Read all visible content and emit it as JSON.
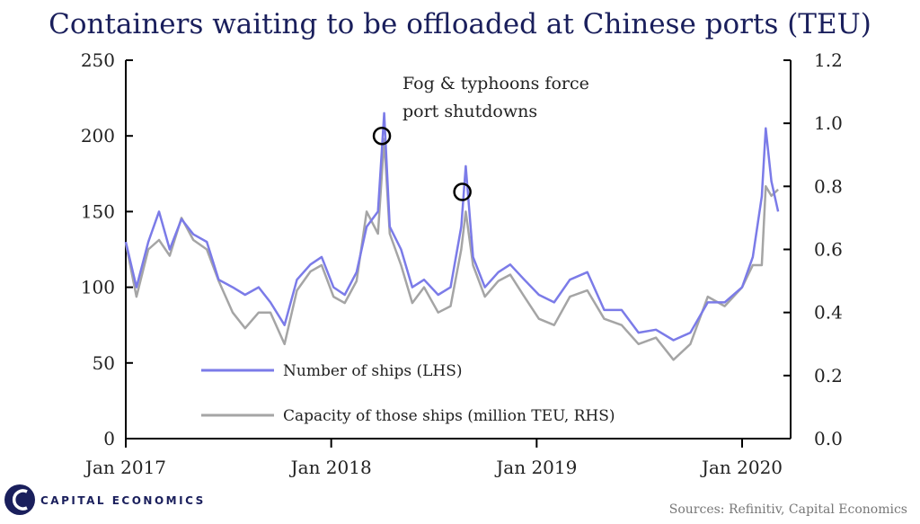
{
  "chart_data": {
    "type": "line",
    "title": "Containers waiting to be offloaded at Chinese ports (TEU)",
    "x_ticks": [
      "Jan 2017",
      "Jan 2018",
      "Jan 2019",
      "Jan 2020"
    ],
    "y_left": {
      "ticks": [
        "0",
        "50",
        "100",
        "150",
        "200",
        "250"
      ],
      "ylim": [
        0,
        250
      ]
    },
    "y_right": {
      "ticks": [
        "0.0",
        "0.2",
        "0.4",
        "0.6",
        "0.8",
        "1.0",
        "1.2"
      ],
      "ylim": [
        0,
        1.2
      ]
    },
    "grid": false,
    "legend_placement": "bottom-left",
    "series": [
      {
        "name": "Number of ships (LHS)",
        "axis": "left",
        "color": "#7b7be8",
        "points": [
          [
            "2017-01-01",
            130
          ],
          [
            "2017-01-20",
            100
          ],
          [
            "2017-02-10",
            130
          ],
          [
            "2017-03-01",
            150
          ],
          [
            "2017-03-20",
            125
          ],
          [
            "2017-04-10",
            145
          ],
          [
            "2017-05-01",
            135
          ],
          [
            "2017-05-25",
            130
          ],
          [
            "2017-06-15",
            105
          ],
          [
            "2017-07-10",
            100
          ],
          [
            "2017-08-01",
            95
          ],
          [
            "2017-08-25",
            100
          ],
          [
            "2017-09-15",
            90
          ],
          [
            "2017-10-10",
            75
          ],
          [
            "2017-11-01",
            105
          ],
          [
            "2017-11-25",
            115
          ],
          [
            "2017-12-15",
            120
          ],
          [
            "2018-01-05",
            100
          ],
          [
            "2018-01-25",
            95
          ],
          [
            "2018-02-15",
            110
          ],
          [
            "2018-03-05",
            140
          ],
          [
            "2018-03-25",
            150
          ],
          [
            "2018-04-05",
            215
          ],
          [
            "2018-04-15",
            140
          ],
          [
            "2018-05-05",
            125
          ],
          [
            "2018-05-25",
            100
          ],
          [
            "2018-06-15",
            105
          ],
          [
            "2018-07-10",
            95
          ],
          [
            "2018-08-01",
            100
          ],
          [
            "2018-08-20",
            140
          ],
          [
            "2018-08-28",
            180
          ],
          [
            "2018-09-10",
            120
          ],
          [
            "2018-10-01",
            100
          ],
          [
            "2018-10-25",
            110
          ],
          [
            "2018-11-15",
            115
          ],
          [
            "2018-12-10",
            105
          ],
          [
            "2019-01-05",
            95
          ],
          [
            "2019-02-01",
            90
          ],
          [
            "2019-03-01",
            105
          ],
          [
            "2019-04-01",
            110
          ],
          [
            "2019-05-01",
            85
          ],
          [
            "2019-06-01",
            85
          ],
          [
            "2019-07-01",
            70
          ],
          [
            "2019-08-01",
            72
          ],
          [
            "2019-09-01",
            65
          ],
          [
            "2019-10-01",
            70
          ],
          [
            "2019-11-01",
            90
          ],
          [
            "2019-12-01",
            90
          ],
          [
            "2020-01-01",
            100
          ],
          [
            "2020-01-20",
            120
          ],
          [
            "2020-02-05",
            160
          ],
          [
            "2020-02-12",
            205
          ],
          [
            "2020-02-22",
            170
          ],
          [
            "2020-03-05",
            150
          ]
        ]
      },
      {
        "name": "Capacity of those ships (million TEU, RHS)",
        "axis": "right",
        "color": "#a5a5a5",
        "points": [
          [
            "2017-01-01",
            0.62
          ],
          [
            "2017-01-20",
            0.45
          ],
          [
            "2017-02-10",
            0.6
          ],
          [
            "2017-03-01",
            0.63
          ],
          [
            "2017-03-20",
            0.58
          ],
          [
            "2017-04-10",
            0.7
          ],
          [
            "2017-05-01",
            0.63
          ],
          [
            "2017-05-25",
            0.6
          ],
          [
            "2017-06-15",
            0.5
          ],
          [
            "2017-07-10",
            0.4
          ],
          [
            "2017-08-01",
            0.35
          ],
          [
            "2017-08-25",
            0.4
          ],
          [
            "2017-09-15",
            0.4
          ],
          [
            "2017-10-10",
            0.3
          ],
          [
            "2017-11-01",
            0.47
          ],
          [
            "2017-11-25",
            0.53
          ],
          [
            "2017-12-15",
            0.55
          ],
          [
            "2018-01-05",
            0.45
          ],
          [
            "2018-01-25",
            0.43
          ],
          [
            "2018-02-15",
            0.5
          ],
          [
            "2018-03-05",
            0.72
          ],
          [
            "2018-03-25",
            0.65
          ],
          [
            "2018-04-05",
            0.95
          ],
          [
            "2018-04-15",
            0.65
          ],
          [
            "2018-05-05",
            0.55
          ],
          [
            "2018-05-25",
            0.43
          ],
          [
            "2018-06-15",
            0.48
          ],
          [
            "2018-07-10",
            0.4
          ],
          [
            "2018-08-01",
            0.42
          ],
          [
            "2018-08-20",
            0.6
          ],
          [
            "2018-08-28",
            0.72
          ],
          [
            "2018-09-10",
            0.55
          ],
          [
            "2018-10-01",
            0.45
          ],
          [
            "2018-10-25",
            0.5
          ],
          [
            "2018-11-15",
            0.52
          ],
          [
            "2018-12-10",
            0.45
          ],
          [
            "2019-01-05",
            0.38
          ],
          [
            "2019-02-01",
            0.36
          ],
          [
            "2019-03-01",
            0.45
          ],
          [
            "2019-04-01",
            0.47
          ],
          [
            "2019-05-01",
            0.38
          ],
          [
            "2019-06-01",
            0.36
          ],
          [
            "2019-07-01",
            0.3
          ],
          [
            "2019-08-01",
            0.32
          ],
          [
            "2019-09-01",
            0.25
          ],
          [
            "2019-10-01",
            0.3
          ],
          [
            "2019-11-01",
            0.45
          ],
          [
            "2019-12-01",
            0.42
          ],
          [
            "2020-01-01",
            0.48
          ],
          [
            "2020-01-20",
            0.55
          ],
          [
            "2020-02-05",
            0.55
          ],
          [
            "2020-02-12",
            0.8
          ],
          [
            "2020-02-22",
            0.77
          ],
          [
            "2020-03-05",
            0.79
          ]
        ]
      }
    ],
    "annotation": {
      "lines": [
        "Fog & typhoons force",
        "port shutdowns"
      ],
      "markers": [
        [
          "2018-04-01",
          200
        ],
        [
          "2018-08-22",
          163
        ]
      ]
    }
  },
  "footer": {
    "brand": "CAPITAL ECONOMICS",
    "sources": "Sources: Refinitiv, Capital Economics"
  }
}
